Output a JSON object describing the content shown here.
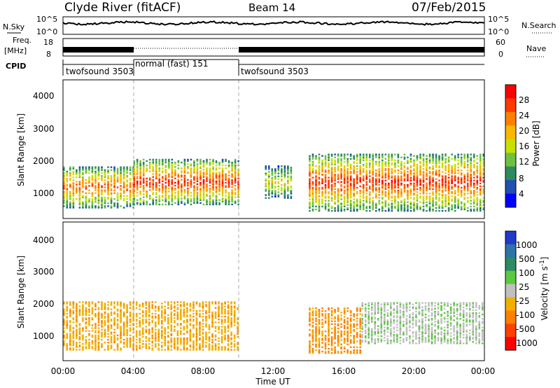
{
  "header": {
    "title": "Clyde River (fitACF)",
    "beam": "Beam 14",
    "date": "07/Feb/2015"
  },
  "top_panels": {
    "nsky_label": "N.Sky",
    "nsky_ticks": [
      "10^5",
      "10^0"
    ],
    "nsearch_label": "N.Search",
    "nsearch_ticks": [
      "10^5",
      "10^0"
    ],
    "freq_label": "Freq.",
    "freq_unit": "[MHz]",
    "freq_ticks": [
      "18",
      "8"
    ],
    "nave_label": "Nave",
    "nave_ticks": [
      "60",
      "0"
    ],
    "cpid_label": "CPID",
    "modes": [
      {
        "label": "twofsound 3503",
        "start_h": 0,
        "end_h": 4
      },
      {
        "label": "normal (fast) 151",
        "start_h": 4,
        "end_h": 10
      },
      {
        "label": "twofsound 3503",
        "start_h": 10,
        "end_h": 24
      }
    ]
  },
  "power_panel": {
    "ylabel": "Slant Range [km]",
    "yticks": [
      "4000",
      "3000",
      "2000",
      "1000"
    ],
    "colorbar_label": "Power [dB]",
    "colorbar_ticks": [
      "28",
      "24",
      "20",
      "16",
      "12",
      "8",
      "4"
    ],
    "colorbar_colors": [
      "#ff0000",
      "#ff3a00",
      "#ff8000",
      "#f6b800",
      "#c8e000",
      "#70c040",
      "#2e8a60",
      "#2050b0",
      "#0000ff"
    ]
  },
  "velocity_panel": {
    "ylabel": "Slant Range [km]",
    "yticks": [
      "4000",
      "3000",
      "2000",
      "1000"
    ],
    "colorbar_label": "Velocity [m s",
    "colorbar_exp": "-1",
    "colorbar_ticks": [
      "1000",
      "500",
      "100",
      "25",
      "-25",
      "-100",
      "-500",
      "-1000"
    ],
    "colorbar_colors": [
      "#1e3cc8",
      "#2f73a8",
      "#2e8a60",
      "#5cc840",
      "#c0c0c0",
      "#f0b000",
      "#ff8000",
      "#ff4000",
      "#ff0000"
    ]
  },
  "xaxis": {
    "label": "Time UT",
    "ticks": [
      "00:00",
      "04:00",
      "08:00",
      "12:00",
      "16:00",
      "20:00",
      "00:00"
    ]
  },
  "chart_data": {
    "type": "heatmap",
    "title": "Clyde River (fitACF)",
    "xlabel": "Time UT",
    "ylabel": "Slant Range [km]",
    "xlim_hours": [
      0,
      24
    ],
    "ylim_km": [
      180,
      4500
    ],
    "power_db_range": [
      0,
      32
    ],
    "velocity_range": [
      -1000,
      1000
    ],
    "power_regions": [
      {
        "t0": 0.0,
        "t1": 4.0,
        "r0": 500,
        "r1": 1800,
        "power_peak_db": 26
      },
      {
        "t0": 4.0,
        "t1": 10.0,
        "r0": 600,
        "r1": 2000,
        "power_peak_db": 30
      },
      {
        "t0": 11.5,
        "t1": 13.0,
        "r0": 800,
        "r1": 1800,
        "power_peak_db": 18
      },
      {
        "t0": 14.0,
        "t1": 24.0,
        "r0": 400,
        "r1": 2200,
        "power_peak_db": 30
      }
    ],
    "velocity_regions": [
      {
        "t0": 0.0,
        "t1": 10.0,
        "r0": 500,
        "r1": 2000,
        "velocity_ms": -300
      },
      {
        "t0": 14.0,
        "t1": 17.0,
        "r0": 400,
        "r1": 1800,
        "velocity_ms": -400
      },
      {
        "t0": 17.0,
        "t1": 24.0,
        "r0": 700,
        "r1": 2000,
        "velocity_ms": 80
      }
    ]
  }
}
